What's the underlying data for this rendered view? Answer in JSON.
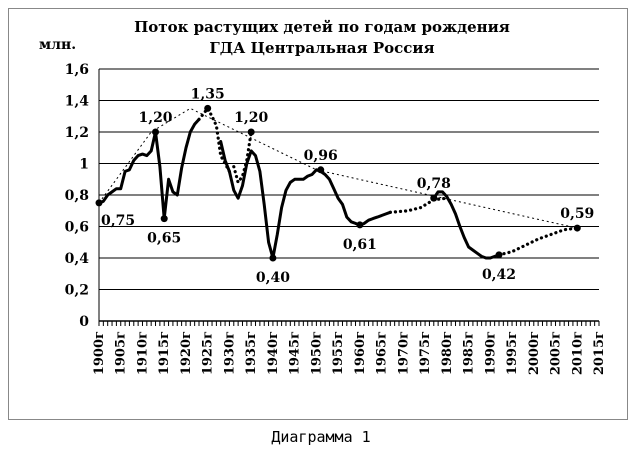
{
  "caption": "Диаграмма 1",
  "chart_data": {
    "type": "line",
    "title_line1": "Поток растущих детей по годам рождения",
    "title_line2": "ГДА  Центральная Россия",
    "ylabel": "млн.",
    "ylim": [
      0,
      1.6
    ],
    "yticks": [
      {
        "v": 0,
        "label": "0"
      },
      {
        "v": 0.2,
        "label": "0,2"
      },
      {
        "v": 0.4,
        "label": "0,4"
      },
      {
        "v": 0.6,
        "label": "0,6"
      },
      {
        "v": 0.8,
        "label": "0,8"
      },
      {
        "v": 1.0,
        "label": "1"
      },
      {
        "v": 1.2,
        "label": "1,2"
      },
      {
        "v": 1.4,
        "label": "1,4"
      },
      {
        "v": 1.6,
        "label": "1,6"
      }
    ],
    "xlim": [
      1900,
      2015
    ],
    "xticks": [
      {
        "v": 1900,
        "label": "1900г"
      },
      {
        "v": 1905,
        "label": "1905г"
      },
      {
        "v": 1910,
        "label": "1910г"
      },
      {
        "v": 1915,
        "label": "1915г"
      },
      {
        "v": 1920,
        "label": "1920г"
      },
      {
        "v": 1925,
        "label": "1925г"
      },
      {
        "v": 1930,
        "label": "1930г"
      },
      {
        "v": 1935,
        "label": "1935г"
      },
      {
        "v": 1940,
        "label": "1940г"
      },
      {
        "v": 1945,
        "label": "1945г"
      },
      {
        "v": 1950,
        "label": "1950г"
      },
      {
        "v": 1955,
        "label": "1955г"
      },
      {
        "v": 1960,
        "label": "1960г"
      },
      {
        "v": 1965,
        "label": "1965г"
      },
      {
        "v": 1970,
        "label": "1970г"
      },
      {
        "v": 1975,
        "label": "1975г"
      },
      {
        "v": 1980,
        "label": "1980г"
      },
      {
        "v": 1985,
        "label": "1985г"
      },
      {
        "v": 1990,
        "label": "1990г"
      },
      {
        "v": 1995,
        "label": "1995г"
      },
      {
        "v": 2000,
        "label": "2000г"
      },
      {
        "v": 2005,
        "label": "2005г"
      },
      {
        "v": 2010,
        "label": "2010г"
      },
      {
        "v": 2015,
        "label": "2015г"
      }
    ],
    "grid": "horizontal",
    "series": [
      {
        "style": "solid",
        "points": [
          [
            1900,
            0.75
          ],
          [
            1901,
            0.76
          ],
          [
            1902,
            0.8
          ],
          [
            1903,
            0.82
          ],
          [
            1904,
            0.84
          ],
          [
            1905,
            0.84
          ],
          [
            1906,
            0.95
          ],
          [
            1907,
            0.96
          ],
          [
            1908,
            1.02
          ],
          [
            1909,
            1.05
          ],
          [
            1910,
            1.06
          ],
          [
            1911,
            1.05
          ],
          [
            1912,
            1.08
          ],
          [
            1913,
            1.2
          ],
          [
            1914,
            0.98
          ],
          [
            1915,
            0.65
          ],
          [
            1916,
            0.9
          ],
          [
            1917,
            0.82
          ],
          [
            1918,
            0.8
          ],
          [
            1919,
            0.97
          ],
          [
            1920,
            1.1
          ],
          [
            1921,
            1.2
          ],
          [
            1922,
            1.25
          ],
          [
            1923,
            1.28
          ]
        ]
      },
      {
        "style": "dotted",
        "points": [
          [
            1923,
            1.28
          ],
          [
            1925,
            1.35
          ],
          [
            1926,
            1.3
          ],
          [
            1927,
            1.24
          ],
          [
            1928,
            1.05
          ],
          [
            1930,
            0.95
          ]
        ]
      },
      {
        "style": "solid",
        "points": [
          [
            1928,
            1.14
          ],
          [
            1929,
            1.02
          ],
          [
            1930,
            0.95
          ],
          [
            1931,
            0.83
          ],
          [
            1932,
            0.78
          ],
          [
            1933,
            0.86
          ],
          [
            1934,
            1.0
          ],
          [
            1935,
            1.08
          ],
          [
            1936,
            1.05
          ],
          [
            1937,
            0.95
          ],
          [
            1938,
            0.74
          ],
          [
            1939,
            0.5
          ],
          [
            1940,
            0.4
          ],
          [
            1941,
            0.55
          ],
          [
            1942,
            0.72
          ],
          [
            1943,
            0.83
          ],
          [
            1944,
            0.88
          ],
          [
            1945,
            0.9
          ],
          [
            1946,
            0.9
          ],
          [
            1947,
            0.9
          ],
          [
            1948,
            0.92
          ],
          [
            1949,
            0.93
          ],
          [
            1950,
            0.96
          ],
          [
            1951,
            0.95
          ],
          [
            1952,
            0.93
          ],
          [
            1953,
            0.9
          ],
          [
            1954,
            0.84
          ],
          [
            1955,
            0.78
          ],
          [
            1956,
            0.74
          ],
          [
            1957,
            0.66
          ],
          [
            1958,
            0.63
          ],
          [
            1959,
            0.62
          ],
          [
            1960,
            0.61
          ],
          [
            1961,
            0.62
          ],
          [
            1962,
            0.64
          ],
          [
            1963,
            0.65
          ],
          [
            1964,
            0.66
          ],
          [
            1965,
            0.67
          ],
          [
            1966,
            0.68
          ],
          [
            1967,
            0.69
          ]
        ]
      },
      {
        "style": "dotted",
        "points": [
          [
            1931,
            0.98
          ],
          [
            1932,
            0.88
          ],
          [
            1933,
            0.92
          ],
          [
            1934,
            1.02
          ],
          [
            1935,
            1.2
          ]
        ]
      },
      {
        "style": "dotted",
        "points": [
          [
            1967,
            0.69
          ],
          [
            1971,
            0.7
          ],
          [
            1974,
            0.72
          ],
          [
            1977,
            0.77
          ],
          [
            1980,
            0.78
          ]
        ]
      },
      {
        "style": "solid",
        "points": [
          [
            1977,
            0.78
          ],
          [
            1978,
            0.82
          ],
          [
            1979,
            0.82
          ],
          [
            1980,
            0.79
          ],
          [
            1981,
            0.74
          ],
          [
            1982,
            0.68
          ],
          [
            1983,
            0.6
          ],
          [
            1984,
            0.53
          ],
          [
            1985,
            0.47
          ],
          [
            1986,
            0.45
          ],
          [
            1987,
            0.43
          ],
          [
            1988,
            0.41
          ],
          [
            1989,
            0.4
          ],
          [
            1990,
            0.4
          ],
          [
            1991,
            0.41
          ],
          [
            1992,
            0.42
          ]
        ]
      },
      {
        "style": "dotted",
        "points": [
          [
            1992,
            0.42
          ],
          [
            1995,
            0.44
          ],
          [
            1998,
            0.48
          ],
          [
            2001,
            0.52
          ],
          [
            2004,
            0.55
          ],
          [
            2007,
            0.58
          ],
          [
            2010,
            0.59
          ]
        ]
      },
      {
        "style": "thin-dotted",
        "points": [
          [
            1900,
            0.75
          ],
          [
            1912,
            1.2
          ],
          [
            1921,
            1.35
          ],
          [
            1950,
            0.96
          ],
          [
            2010,
            0.59
          ]
        ]
      }
    ],
    "markers": [
      [
        1900,
        0.75
      ],
      [
        1913,
        1.2
      ],
      [
        1915,
        0.65
      ],
      [
        1925,
        1.35
      ],
      [
        1935,
        1.2
      ],
      [
        1940,
        0.4
      ],
      [
        1951,
        0.96
      ],
      [
        1960,
        0.61
      ],
      [
        1977,
        0.78
      ],
      [
        1992,
        0.42
      ],
      [
        2010,
        0.59
      ]
    ],
    "annotations": [
      {
        "x": 1900,
        "y": 0.75,
        "text": "0,75",
        "pos": "below-right"
      },
      {
        "x": 1913,
        "y": 1.2,
        "text": "1,20",
        "pos": "above"
      },
      {
        "x": 1915,
        "y": 0.65,
        "text": "0,65",
        "pos": "below"
      },
      {
        "x": 1925,
        "y": 1.35,
        "text": "1,35",
        "pos": "above"
      },
      {
        "x": 1935,
        "y": 1.2,
        "text": "1,20",
        "pos": "above"
      },
      {
        "x": 1940,
        "y": 0.4,
        "text": "0,40",
        "pos": "below"
      },
      {
        "x": 1951,
        "y": 0.96,
        "text": "0,96",
        "pos": "above"
      },
      {
        "x": 1960,
        "y": 0.61,
        "text": "0,61",
        "pos": "below"
      },
      {
        "x": 1977,
        "y": 0.78,
        "text": "0,78",
        "pos": "above"
      },
      {
        "x": 1992,
        "y": 0.42,
        "text": "0,42",
        "pos": "below"
      },
      {
        "x": 2010,
        "y": 0.59,
        "text": "0,59",
        "pos": "above"
      }
    ]
  }
}
